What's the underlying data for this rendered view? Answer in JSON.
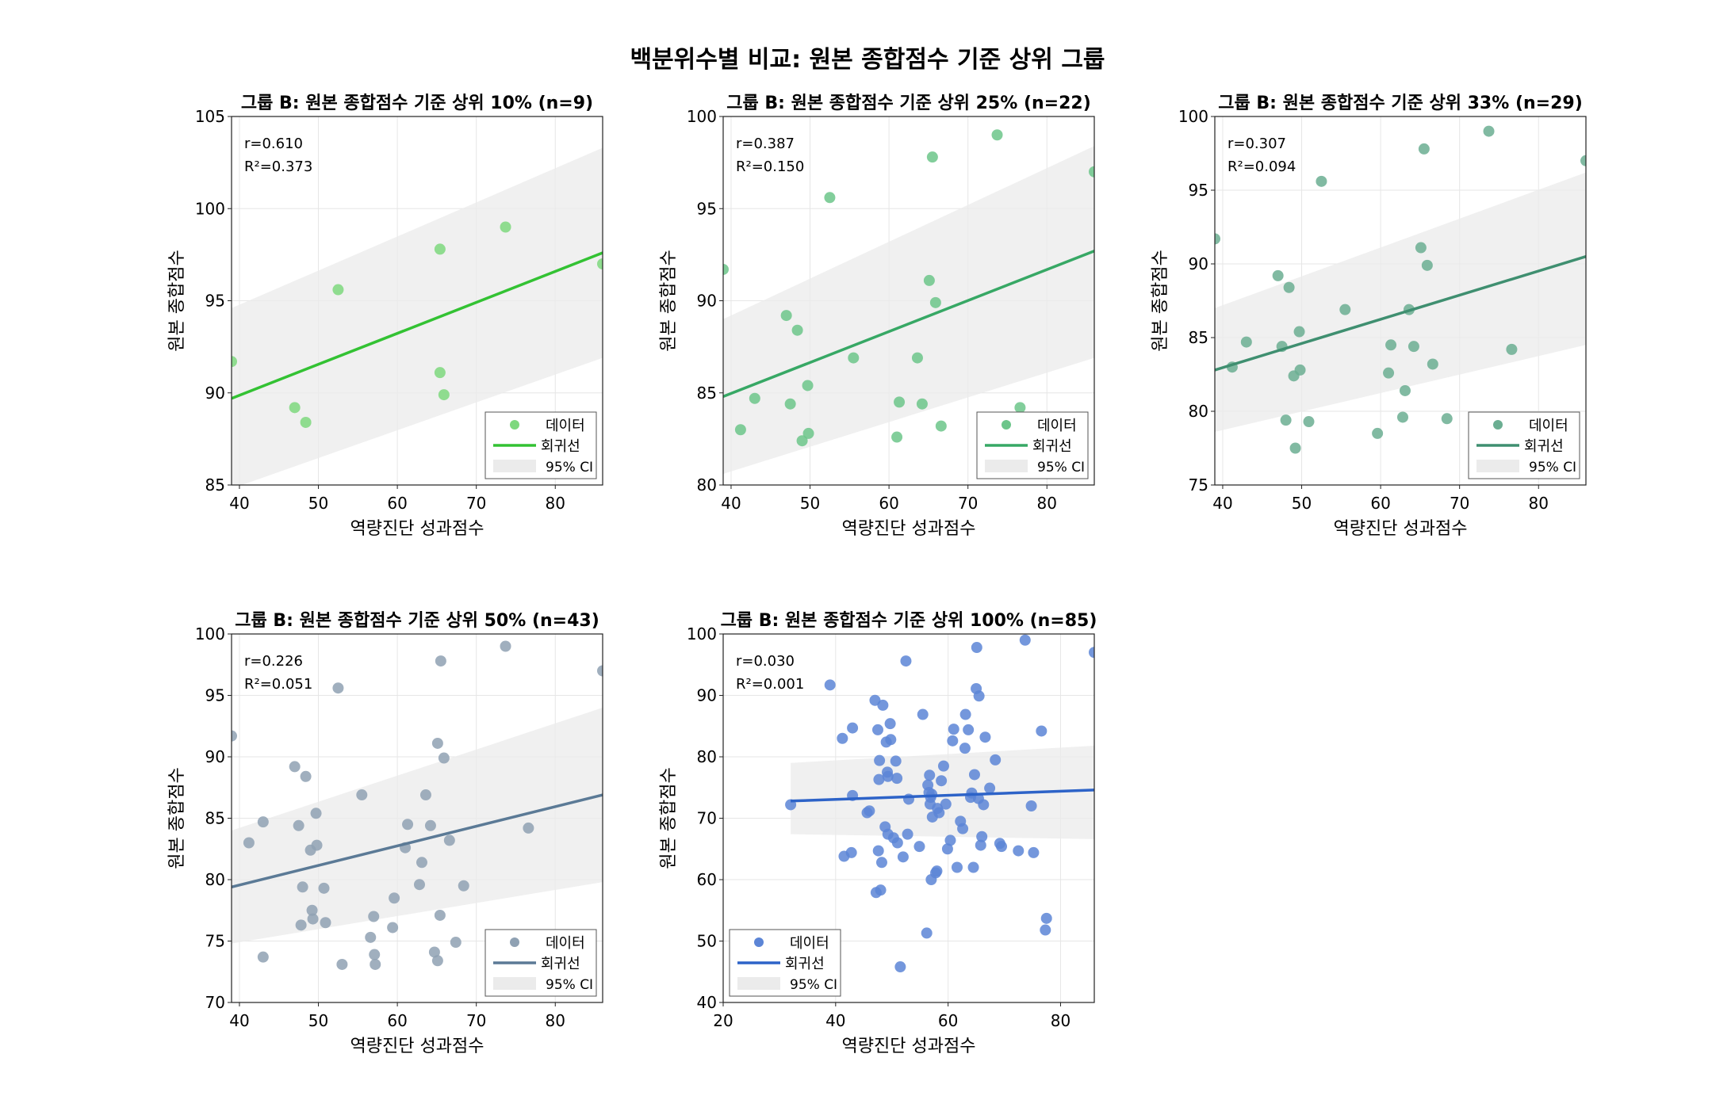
{
  "title": "백분위수별 비교: 원본 종합점수 기준 상위 그룹",
  "legend_labels": [
    "데이터",
    "회귀선",
    "95% CI"
  ],
  "chart_data": [
    {
      "type": "scatter",
      "title": "그룹 B: 원본 종합점수 기준 상위 10% (n=9)",
      "xlabel": "역량진단 성과점수",
      "ylabel": "원본 종합점수",
      "xlim": [
        39,
        86
      ],
      "ylim": [
        85,
        105
      ],
      "xticks": [
        40,
        50,
        60,
        70,
        80
      ],
      "yticks": [
        85,
        90,
        95,
        100,
        105
      ],
      "grid": true,
      "legend_position": "lower-right",
      "color": "#7ED87E",
      "line_color": "#33C233",
      "stats": [
        "r=0.610",
        "R²=0.373"
      ],
      "regression": {
        "x": [
          39,
          86
        ],
        "y": [
          89.7,
          97.6
        ]
      },
      "ci": {
        "x": [
          39,
          86
        ],
        "upper": [
          94.6,
          103.3
        ],
        "lower": [
          84.8,
          91.9
        ]
      },
      "points": [
        [
          39.0,
          91.7
        ],
        [
          47.0,
          89.2
        ],
        [
          48.4,
          88.4
        ],
        [
          52.5,
          95.6
        ],
        [
          65.4,
          91.1
        ],
        [
          65.4,
          97.8
        ],
        [
          65.9,
          89.9
        ],
        [
          73.7,
          99.0
        ],
        [
          86.0,
          97.0
        ]
      ]
    },
    {
      "type": "scatter",
      "title": "그룹 B: 원본 종합점수 기준 상위 25% (n=22)",
      "xlabel": "역량진단 성과점수",
      "ylabel": "원본 종합점수",
      "xlim": [
        39,
        86
      ],
      "ylim": [
        80,
        100
      ],
      "xticks": [
        40,
        50,
        60,
        70,
        80
      ],
      "yticks": [
        80,
        85,
        90,
        95,
        100
      ],
      "grid": true,
      "legend_position": "lower-right",
      "color": "#6CC58A",
      "line_color": "#37A865",
      "stats": [
        "r=0.387",
        "R²=0.150"
      ],
      "regression": {
        "x": [
          39,
          86
        ],
        "y": [
          84.8,
          92.7
        ]
      },
      "ci": {
        "x": [
          39,
          86
        ],
        "upper": [
          89.0,
          98.4
        ],
        "lower": [
          80.6,
          86.9
        ]
      },
      "points": [
        [
          39.0,
          91.7
        ],
        [
          41.2,
          83.0
        ],
        [
          43.0,
          84.7
        ],
        [
          47.0,
          89.2
        ],
        [
          47.5,
          84.4
        ],
        [
          48.4,
          88.4
        ],
        [
          49.0,
          82.4
        ],
        [
          49.7,
          85.4
        ],
        [
          49.8,
          82.8
        ],
        [
          52.5,
          95.6
        ],
        [
          55.5,
          86.9
        ],
        [
          61.0,
          82.6
        ],
        [
          61.3,
          84.5
        ],
        [
          63.6,
          86.9
        ],
        [
          64.2,
          84.4
        ],
        [
          65.1,
          91.1
        ],
        [
          65.5,
          97.8
        ],
        [
          65.9,
          89.9
        ],
        [
          66.6,
          83.2
        ],
        [
          73.7,
          99.0
        ],
        [
          76.6,
          84.2
        ],
        [
          86.0,
          97.0
        ]
      ]
    },
    {
      "type": "scatter",
      "title": "그룹 B: 원본 종합점수 기준 상위 33% (n=29)",
      "xlabel": "역량진단 성과점수",
      "ylabel": "원본 종합점수",
      "xlim": [
        39,
        86
      ],
      "ylim": [
        75,
        100
      ],
      "xticks": [
        40,
        50,
        60,
        70,
        80
      ],
      "yticks": [
        75,
        80,
        85,
        90,
        95,
        100
      ],
      "grid": true,
      "legend_position": "lower-right",
      "color": "#6BAE92",
      "line_color": "#3F8F70",
      "stats": [
        "r=0.307",
        "R²=0.094"
      ],
      "regression": {
        "x": [
          39,
          86
        ],
        "y": [
          82.8,
          90.5
        ]
      },
      "ci": {
        "x": [
          39,
          86
        ],
        "upper": [
          87.0,
          96.2
        ],
        "lower": [
          78.6,
          84.5
        ]
      },
      "points": [
        [
          39.0,
          91.7
        ],
        [
          41.2,
          83.0
        ],
        [
          43.0,
          84.7
        ],
        [
          47.0,
          89.2
        ],
        [
          47.5,
          84.4
        ],
        [
          48.4,
          88.4
        ],
        [
          49.0,
          82.4
        ],
        [
          49.7,
          85.4
        ],
        [
          49.8,
          82.8
        ],
        [
          48.0,
          79.4
        ],
        [
          49.2,
          77.5
        ],
        [
          50.9,
          79.3
        ],
        [
          52.5,
          95.6
        ],
        [
          55.5,
          86.9
        ],
        [
          59.6,
          78.5
        ],
        [
          61.0,
          82.6
        ],
        [
          61.3,
          84.5
        ],
        [
          62.8,
          79.6
        ],
        [
          63.1,
          81.4
        ],
        [
          63.6,
          86.9
        ],
        [
          64.2,
          84.4
        ],
        [
          65.1,
          91.1
        ],
        [
          65.5,
          97.8
        ],
        [
          65.9,
          89.9
        ],
        [
          66.6,
          83.2
        ],
        [
          68.4,
          79.5
        ],
        [
          73.7,
          99.0
        ],
        [
          76.6,
          84.2
        ],
        [
          86.0,
          97.0
        ]
      ]
    },
    {
      "type": "scatter",
      "title": "그룹 B: 원본 종합점수 기준 상위 50% (n=43)",
      "xlabel": "역량진단 성과점수",
      "ylabel": "원본 종합점수",
      "xlim": [
        39,
        86
      ],
      "ylim": [
        70,
        100
      ],
      "xticks": [
        40,
        50,
        60,
        70,
        80
      ],
      "yticks": [
        70,
        75,
        80,
        85,
        90,
        95,
        100
      ],
      "grid": true,
      "legend_position": "lower-right",
      "color": "#8FA1B3",
      "line_color": "#5B7A96",
      "stats": [
        "r=0.226",
        "R²=0.051"
      ],
      "regression": {
        "x": [
          39,
          86
        ],
        "y": [
          79.4,
          86.9
        ]
      },
      "ci": {
        "x": [
          39,
          86
        ],
        "upper": [
          84.0,
          94.0
        ],
        "lower": [
          74.8,
          79.8
        ]
      },
      "points": [
        [
          39.0,
          91.7
        ],
        [
          41.2,
          83.0
        ],
        [
          43.0,
          84.7
        ],
        [
          43.0,
          73.7
        ],
        [
          47.0,
          89.2
        ],
        [
          47.5,
          84.4
        ],
        [
          47.8,
          76.3
        ],
        [
          48.0,
          79.4
        ],
        [
          48.4,
          88.4
        ],
        [
          49.0,
          82.4
        ],
        [
          49.2,
          77.5
        ],
        [
          49.3,
          76.8
        ],
        [
          49.7,
          85.4
        ],
        [
          49.8,
          82.8
        ],
        [
          50.7,
          79.3
        ],
        [
          50.9,
          76.5
        ],
        [
          52.5,
          95.6
        ],
        [
          53.0,
          73.1
        ],
        [
          55.5,
          86.9
        ],
        [
          56.6,
          75.3
        ],
        [
          57.0,
          77.0
        ],
        [
          57.1,
          73.9
        ],
        [
          57.2,
          73.1
        ],
        [
          59.4,
          76.1
        ],
        [
          59.6,
          78.5
        ],
        [
          61.0,
          82.6
        ],
        [
          61.3,
          84.5
        ],
        [
          62.8,
          79.6
        ],
        [
          63.1,
          81.4
        ],
        [
          63.6,
          86.9
        ],
        [
          64.2,
          84.4
        ],
        [
          64.7,
          74.1
        ],
        [
          65.1,
          73.4
        ],
        [
          65.1,
          91.1
        ],
        [
          65.4,
          77.1
        ],
        [
          65.5,
          97.8
        ],
        [
          65.9,
          89.9
        ],
        [
          66.6,
          83.2
        ],
        [
          67.4,
          74.9
        ],
        [
          68.4,
          79.5
        ],
        [
          73.7,
          99.0
        ],
        [
          76.6,
          84.2
        ],
        [
          86.0,
          97.0
        ]
      ]
    },
    {
      "type": "scatter",
      "title": "그룹 B: 원본 종합점수 기준 상위 100% (n=85)",
      "xlabel": "역량진단 성과점수",
      "ylabel": "원본 종합점수",
      "xlim": [
        20,
        86
      ],
      "ylim": [
        40,
        100
      ],
      "xticks": [
        20,
        40,
        60,
        80
      ],
      "yticks": [
        40,
        50,
        60,
        70,
        80,
        90,
        100
      ],
      "grid": true,
      "legend_position": "lower-left",
      "color": "#5C85D6",
      "line_color": "#2D63C8",
      "stats": [
        "r=0.030",
        "R²=0.001"
      ],
      "regression": {
        "x": [
          32,
          86
        ],
        "y": [
          72.8,
          74.6
        ]
      },
      "ci": {
        "x": [
          32,
          86
        ],
        "upper": [
          79.0,
          81.8
        ],
        "lower": [
          67.4,
          66.6
        ]
      },
      "points": [
        [
          32.0,
          72.2
        ],
        [
          39.0,
          91.7
        ],
        [
          41.2,
          83.0
        ],
        [
          41.5,
          63.8
        ],
        [
          42.8,
          64.4
        ],
        [
          43.0,
          73.7
        ],
        [
          43.0,
          84.7
        ],
        [
          45.6,
          70.9
        ],
        [
          46.0,
          71.2
        ],
        [
          47.0,
          89.2
        ],
        [
          47.2,
          57.9
        ],
        [
          47.5,
          84.4
        ],
        [
          47.6,
          64.7
        ],
        [
          47.7,
          76.3
        ],
        [
          47.8,
          79.4
        ],
        [
          48.0,
          58.3
        ],
        [
          48.2,
          62.8
        ],
        [
          48.4,
          88.4
        ],
        [
          48.8,
          68.6
        ],
        [
          49.0,
          82.4
        ],
        [
          49.2,
          77.5
        ],
        [
          49.3,
          76.8
        ],
        [
          49.3,
          67.4
        ],
        [
          49.7,
          85.4
        ],
        [
          49.8,
          82.8
        ],
        [
          50.3,
          66.8
        ],
        [
          50.7,
          79.3
        ],
        [
          50.9,
          76.5
        ],
        [
          51.0,
          66.0
        ],
        [
          51.5,
          45.8
        ],
        [
          52.0,
          63.7
        ],
        [
          52.5,
          95.6
        ],
        [
          52.8,
          67.4
        ],
        [
          53.0,
          73.1
        ],
        [
          54.9,
          65.4
        ],
        [
          55.5,
          86.9
        ],
        [
          56.2,
          51.3
        ],
        [
          56.4,
          75.4
        ],
        [
          56.6,
          74.2
        ],
        [
          56.7,
          77.0
        ],
        [
          56.8,
          72.3
        ],
        [
          56.9,
          73.4
        ],
        [
          57.0,
          60.0
        ],
        [
          57.1,
          73.9
        ],
        [
          57.2,
          70.2
        ],
        [
          57.8,
          61.1
        ],
        [
          58.0,
          61.4
        ],
        [
          58.1,
          71.6
        ],
        [
          58.4,
          70.9
        ],
        [
          58.8,
          76.1
        ],
        [
          59.2,
          78.5
        ],
        [
          59.6,
          72.3
        ],
        [
          59.9,
          65.0
        ],
        [
          60.4,
          66.4
        ],
        [
          60.8,
          82.6
        ],
        [
          61.0,
          84.5
        ],
        [
          61.6,
          62.0
        ],
        [
          62.2,
          69.5
        ],
        [
          62.6,
          68.3
        ],
        [
          63.0,
          81.4
        ],
        [
          63.1,
          86.9
        ],
        [
          63.6,
          84.4
        ],
        [
          64.0,
          73.4
        ],
        [
          64.2,
          74.1
        ],
        [
          64.5,
          62.0
        ],
        [
          64.7,
          77.1
        ],
        [
          65.0,
          91.1
        ],
        [
          65.1,
          97.8
        ],
        [
          65.4,
          73.2
        ],
        [
          65.5,
          89.9
        ],
        [
          65.8,
          65.6
        ],
        [
          66.0,
          67.0
        ],
        [
          66.3,
          72.2
        ],
        [
          66.6,
          83.2
        ],
        [
          67.4,
          74.9
        ],
        [
          68.4,
          79.5
        ],
        [
          69.2,
          65.9
        ],
        [
          69.5,
          65.4
        ],
        [
          72.5,
          64.7
        ],
        [
          73.7,
          99.0
        ],
        [
          74.8,
          72.0
        ],
        [
          75.2,
          64.4
        ],
        [
          76.6,
          84.2
        ],
        [
          77.3,
          51.8
        ],
        [
          77.5,
          53.7
        ],
        [
          86.0,
          97.0
        ]
      ]
    }
  ]
}
